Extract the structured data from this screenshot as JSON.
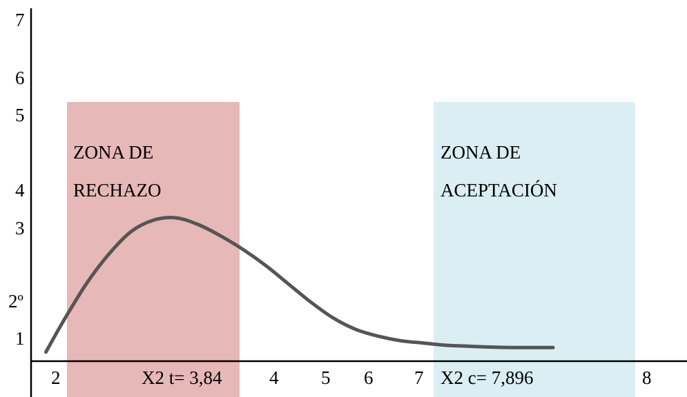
{
  "chart_data": {
    "type": "line",
    "title": "",
    "xlabel": "",
    "ylabel": "",
    "grid": false,
    "y_tick_labels": [
      "7",
      "6",
      "5",
      "4",
      "3",
      "2º",
      "1"
    ],
    "x_tick_labels": [
      "2",
      "X2 t= 3,84",
      "4",
      "5",
      "6",
      "7",
      "X2 c= 7,896",
      "8"
    ],
    "zones": [
      {
        "label_lines": [
          "ZONA DE",
          "RECHAZO"
        ],
        "color": "#e6b8b7"
      },
      {
        "label_lines": [
          "ZONA DE",
          "ACEPTACIÓN"
        ],
        "color": "#daeef3"
      }
    ],
    "curve": {
      "color": "#555555",
      "description_points": [
        [
          0.1,
          0.2
        ],
        [
          0.5,
          0.9
        ],
        [
          1.0,
          1.7
        ],
        [
          1.5,
          2.35
        ],
        [
          2.0,
          2.85
        ],
        [
          2.5,
          3.1
        ],
        [
          3.0,
          3.15
        ],
        [
          3.5,
          3.0
        ],
        [
          4.0,
          2.75
        ],
        [
          4.5,
          2.45
        ],
        [
          5.0,
          2.1
        ],
        [
          5.5,
          1.7
        ],
        [
          6.0,
          1.3
        ],
        [
          6.5,
          0.95
        ],
        [
          7.0,
          0.7
        ],
        [
          7.5,
          0.55
        ],
        [
          8.0,
          0.45
        ],
        [
          8.5,
          0.4
        ],
        [
          9.0,
          0.35
        ],
        [
          9.5,
          0.33
        ],
        [
          10.0,
          0.31
        ],
        [
          10.5,
          0.3
        ],
        [
          11.0,
          0.3
        ],
        [
          11.4,
          0.3
        ]
      ]
    }
  }
}
